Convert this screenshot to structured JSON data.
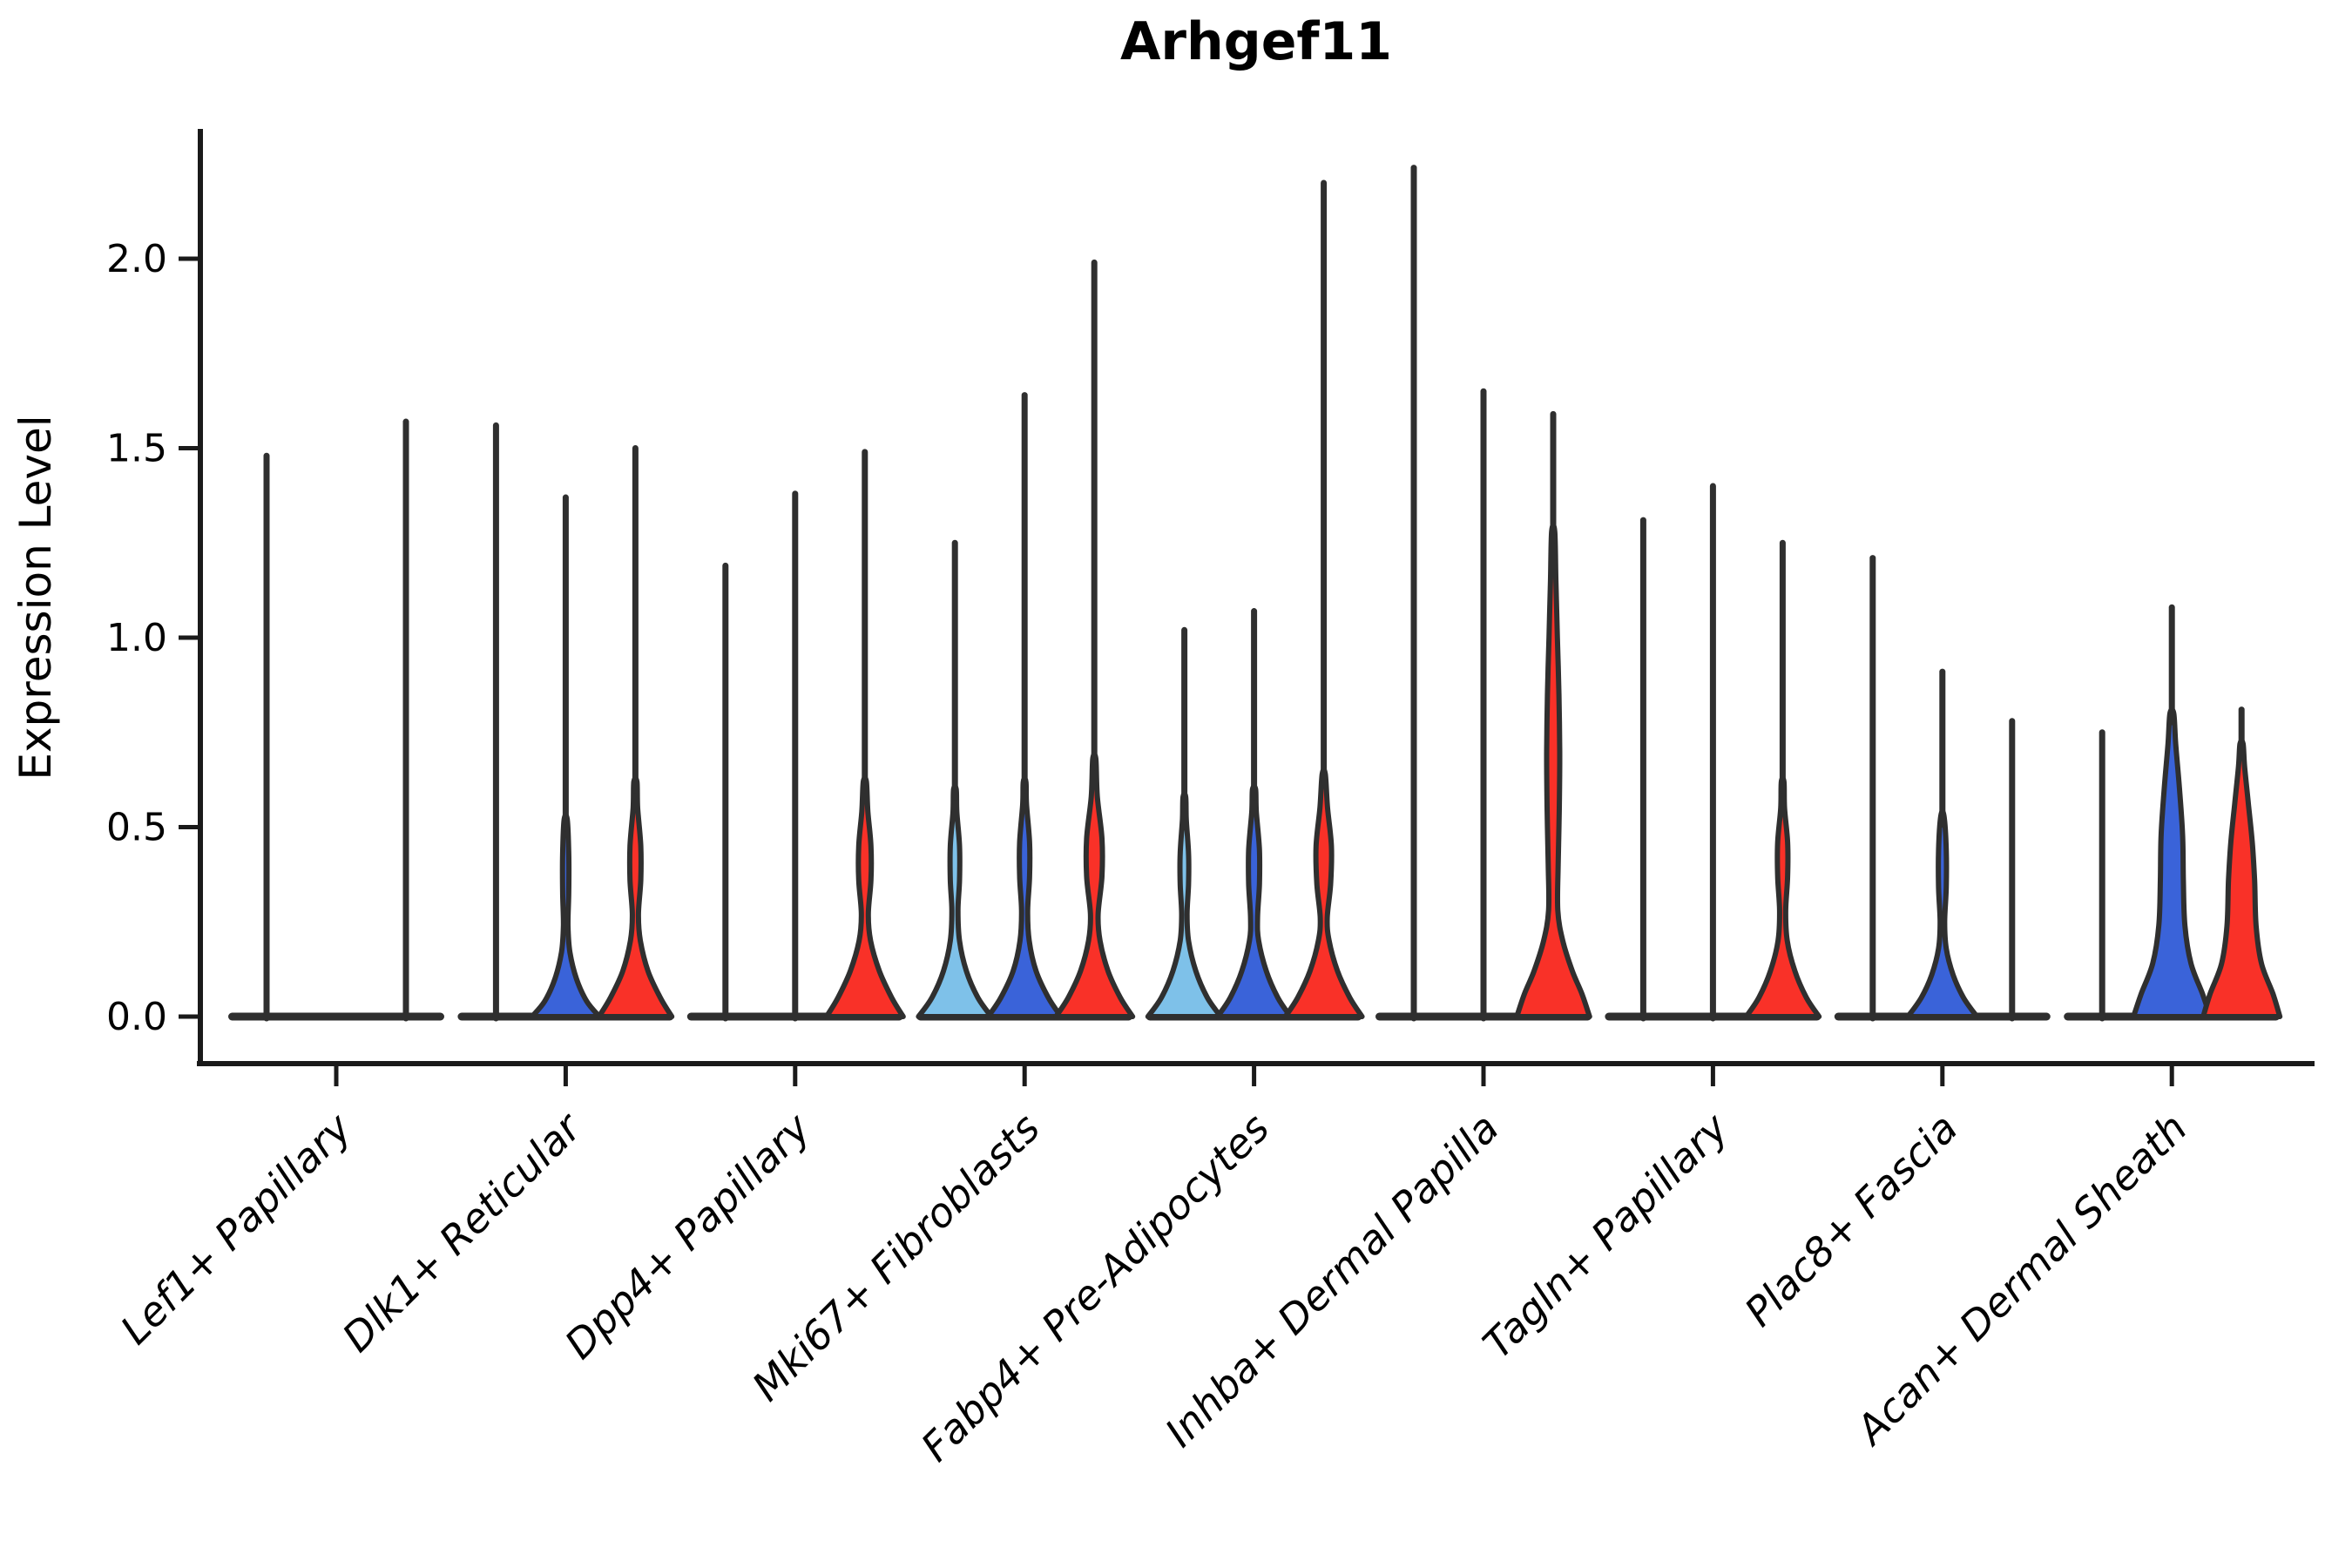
{
  "title": "Arhgef11",
  "ylabel": "Expression Level",
  "colors": {
    "lightblue": "#7EC1E9",
    "blue": "#3A63D9",
    "red": "#F93128",
    "edge": "#2F2F2F",
    "axis": "#1A1A1A",
    "background": "#FFFFFF"
  },
  "chart_data": {
    "type": "violin",
    "title": "Arhgef11",
    "xlabel": "",
    "ylabel": "Expression Level",
    "ylim": [
      0,
      2.34
    ],
    "yticks": [
      0.0,
      0.5,
      1.0,
      1.5,
      2.0
    ],
    "grid": false,
    "legend": "none",
    "categories": [
      "Lef1+ Papillary",
      "Dlk1+ Reticular",
      "Dpp4+ Papillary",
      "Mki67+ Fibroblasts",
      "Fabp4+ Pre-Adipocytes",
      "Inhba+ Dermal Papilla",
      "Tagln+ Papillary",
      "Plac8+ Fascia",
      "Acan+ Dermal Sheath"
    ],
    "series": [
      {
        "name": "lightblue",
        "color": "#7EC1E9",
        "violins": [
          {
            "max": 1.48,
            "profile": null
          },
          {
            "max": 1.56,
            "profile": null
          },
          {
            "max": 1.19,
            "profile": null
          },
          {
            "max": 1.25,
            "profile": [
              [
                0,
                0.95
              ],
              [
                0.05,
                0.6
              ],
              [
                0.12,
                0.3
              ],
              [
                0.2,
                0.12
              ],
              [
                0.28,
                0.08
              ],
              [
                0.36,
                0.12
              ],
              [
                0.45,
                0.12
              ],
              [
                0.54,
                0.05
              ],
              [
                0.6,
                0.035
              ]
            ]
          },
          {
            "max": 1.02,
            "profile": [
              [
                0,
                0.95
              ],
              [
                0.05,
                0.6
              ],
              [
                0.12,
                0.3
              ],
              [
                0.2,
                0.11
              ],
              [
                0.27,
                0.07
              ],
              [
                0.35,
                0.11
              ],
              [
                0.43,
                0.11
              ],
              [
                0.52,
                0.05
              ],
              [
                0.58,
                0.035
              ]
            ]
          },
          {
            "max": 2.24,
            "profile": null
          },
          {
            "max": 1.31,
            "profile": null
          },
          {
            "max": 1.21,
            "profile": null
          },
          {
            "max": 0.75,
            "profile": null
          }
        ]
      },
      {
        "name": "blue",
        "color": "#3A63D9",
        "violins": [
          {
            "max": 0.0,
            "profile": null
          },
          {
            "max": 1.37,
            "profile": [
              [
                0,
                0.88
              ],
              [
                0.04,
                0.55
              ],
              [
                0.1,
                0.28
              ],
              [
                0.17,
                0.11
              ],
              [
                0.24,
                0.06
              ],
              [
                0.33,
                0.08
              ],
              [
                0.43,
                0.08
              ],
              [
                0.52,
                0.04
              ]
            ]
          },
          {
            "max": 1.38,
            "profile": null
          },
          {
            "max": 1.64,
            "profile": [
              [
                0,
                0.95
              ],
              [
                0.05,
                0.62
              ],
              [
                0.12,
                0.3
              ],
              [
                0.2,
                0.12
              ],
              [
                0.28,
                0.08
              ],
              [
                0.37,
                0.13
              ],
              [
                0.46,
                0.13
              ],
              [
                0.56,
                0.05
              ],
              [
                0.62,
                0.035
              ]
            ]
          },
          {
            "max": 1.07,
            "profile": [
              [
                0,
                0.95
              ],
              [
                0.05,
                0.62
              ],
              [
                0.12,
                0.32
              ],
              [
                0.2,
                0.12
              ],
              [
                0.26,
                0.09
              ],
              [
                0.35,
                0.14
              ],
              [
                0.44,
                0.14
              ],
              [
                0.54,
                0.06
              ],
              [
                0.6,
                0.04
              ]
            ]
          },
          {
            "max": 1.65,
            "profile": null
          },
          {
            "max": 1.4,
            "profile": null
          },
          {
            "max": 0.91,
            "profile": [
              [
                0,
                0.9
              ],
              [
                0.05,
                0.55
              ],
              [
                0.11,
                0.28
              ],
              [
                0.18,
                0.1
              ],
              [
                0.25,
                0.06
              ],
              [
                0.34,
                0.1
              ],
              [
                0.44,
                0.1
              ],
              [
                0.53,
                0.04
              ]
            ]
          },
          {
            "max": 1.08,
            "profile": [
              [
                0,
                1.0
              ],
              [
                0.06,
                0.8
              ],
              [
                0.14,
                0.5
              ],
              [
                0.24,
                0.34
              ],
              [
                0.36,
                0.3
              ],
              [
                0.48,
                0.28
              ],
              [
                0.6,
                0.2
              ],
              [
                0.72,
                0.1
              ],
              [
                0.8,
                0.05
              ]
            ]
          }
        ]
      },
      {
        "name": "red",
        "color": "#F93128",
        "violins": [
          {
            "max": 1.57,
            "profile": null
          },
          {
            "max": 1.5,
            "profile": [
              [
                0,
                0.95
              ],
              [
                0.05,
                0.65
              ],
              [
                0.12,
                0.33
              ],
              [
                0.2,
                0.13
              ],
              [
                0.27,
                0.08
              ],
              [
                0.36,
                0.14
              ],
              [
                0.45,
                0.14
              ],
              [
                0.55,
                0.06
              ],
              [
                0.62,
                0.04
              ]
            ]
          },
          {
            "max": 1.49,
            "profile": [
              [
                0,
                1.0
              ],
              [
                0.05,
                0.7
              ],
              [
                0.12,
                0.38
              ],
              [
                0.2,
                0.15
              ],
              [
                0.27,
                0.09
              ],
              [
                0.36,
                0.16
              ],
              [
                0.45,
                0.16
              ],
              [
                0.54,
                0.08
              ],
              [
                0.62,
                0.04
              ]
            ]
          },
          {
            "max": 1.99,
            "profile": [
              [
                0,
                1.0
              ],
              [
                0.05,
                0.68
              ],
              [
                0.12,
                0.36
              ],
              [
                0.2,
                0.15
              ],
              [
                0.27,
                0.1
              ],
              [
                0.37,
                0.2
              ],
              [
                0.47,
                0.2
              ],
              [
                0.58,
                0.08
              ],
              [
                0.68,
                0.04
              ]
            ]
          },
          {
            "max": 2.2,
            "profile": [
              [
                0,
                1.0
              ],
              [
                0.05,
                0.68
              ],
              [
                0.12,
                0.36
              ],
              [
                0.2,
                0.14
              ],
              [
                0.26,
                0.09
              ],
              [
                0.35,
                0.18
              ],
              [
                0.45,
                0.2
              ],
              [
                0.55,
                0.1
              ],
              [
                0.64,
                0.04
              ]
            ]
          },
          {
            "max": 1.59,
            "profile": [
              [
                0,
                0.95
              ],
              [
                0.06,
                0.75
              ],
              [
                0.12,
                0.5
              ],
              [
                0.2,
                0.25
              ],
              [
                0.28,
                0.12
              ],
              [
                0.4,
                0.13
              ],
              [
                0.55,
                0.16
              ],
              [
                0.7,
                0.17
              ],
              [
                0.85,
                0.15
              ],
              [
                1.0,
                0.11
              ],
              [
                1.15,
                0.07
              ],
              [
                1.28,
                0.04
              ]
            ]
          },
          {
            "max": 1.25,
            "profile": [
              [
                0,
                0.95
              ],
              [
                0.05,
                0.62
              ],
              [
                0.12,
                0.32
              ],
              [
                0.2,
                0.12
              ],
              [
                0.28,
                0.08
              ],
              [
                0.37,
                0.13
              ],
              [
                0.46,
                0.13
              ],
              [
                0.55,
                0.05
              ],
              [
                0.62,
                0.035
              ]
            ]
          },
          {
            "max": 0.78,
            "profile": null
          },
          {
            "max": 0.81,
            "profile": [
              [
                0,
                1.0
              ],
              [
                0.06,
                0.82
              ],
              [
                0.14,
                0.52
              ],
              [
                0.24,
                0.38
              ],
              [
                0.36,
                0.34
              ],
              [
                0.46,
                0.28
              ],
              [
                0.56,
                0.18
              ],
              [
                0.66,
                0.08
              ],
              [
                0.72,
                0.04
              ]
            ]
          }
        ]
      }
    ]
  }
}
